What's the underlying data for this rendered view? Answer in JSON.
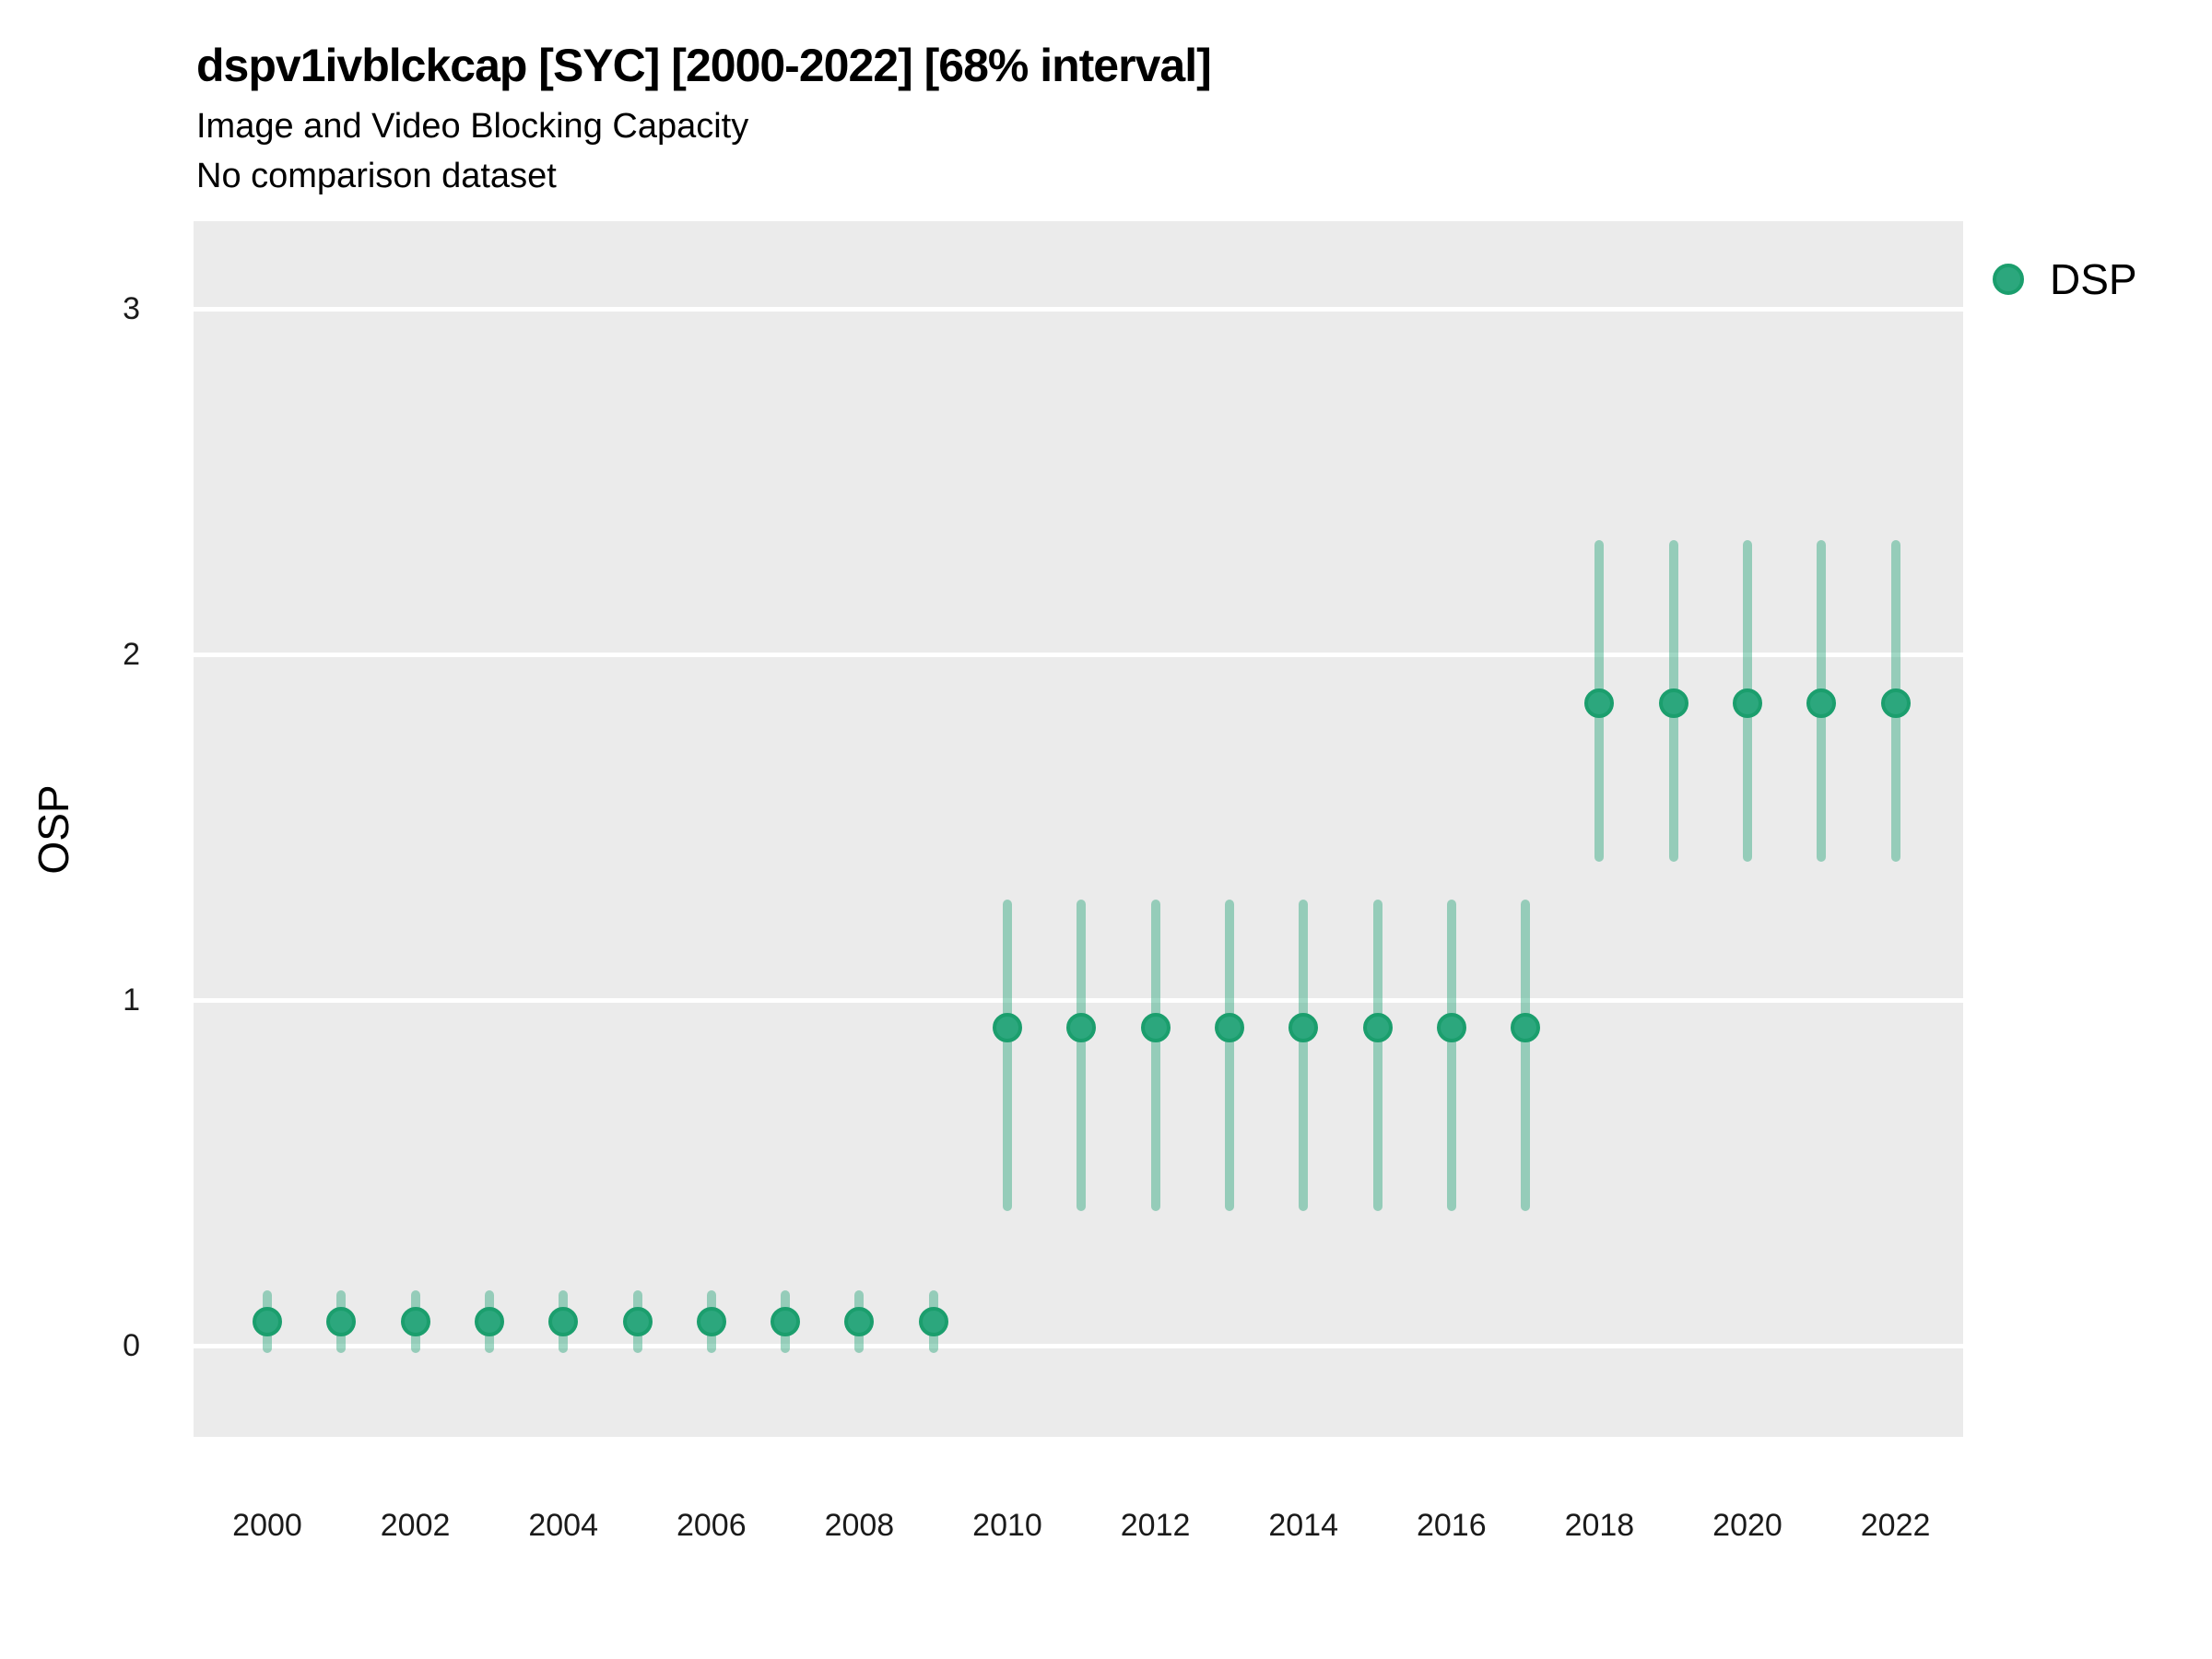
{
  "header": {
    "title": "dspv1ivblckcap [SYC] [2000-2022] [68% interval]",
    "subtitle1": "Image and Video Blocking Capacity",
    "subtitle2": "No comparison dataset"
  },
  "chart_data": {
    "type": "scatter",
    "title": "dspv1ivblckcap [SYC] [2000-2022] [68% interval]",
    "subtitle": "Image and Video Blocking Capacity",
    "note": "No comparison dataset",
    "interval": "68% interval",
    "xlabel": "",
    "ylabel": "OSP",
    "legend_position": "right-top",
    "grid": "horizontal major gridlines only, white on gray panel",
    "x_ticks": [
      2000,
      2002,
      2004,
      2006,
      2008,
      2010,
      2012,
      2014,
      2016,
      2018,
      2020,
      2022
    ],
    "y_ticks": [
      0,
      1,
      2,
      3
    ],
    "xlim": [
      1999.0,
      2022.95
    ],
    "ylim": [
      -0.27,
      3.25
    ],
    "series": [
      {
        "name": "DSP",
        "points": [
          {
            "x": 2000,
            "y": 0.07,
            "lo": -0.02,
            "hi": 0.16
          },
          {
            "x": 2001,
            "y": 0.07,
            "lo": -0.02,
            "hi": 0.16
          },
          {
            "x": 2002,
            "y": 0.07,
            "lo": -0.02,
            "hi": 0.16
          },
          {
            "x": 2003,
            "y": 0.07,
            "lo": -0.02,
            "hi": 0.16
          },
          {
            "x": 2004,
            "y": 0.07,
            "lo": -0.02,
            "hi": 0.16
          },
          {
            "x": 2005,
            "y": 0.07,
            "lo": -0.02,
            "hi": 0.16
          },
          {
            "x": 2006,
            "y": 0.07,
            "lo": -0.02,
            "hi": 0.16
          },
          {
            "x": 2007,
            "y": 0.07,
            "lo": -0.02,
            "hi": 0.16
          },
          {
            "x": 2008,
            "y": 0.07,
            "lo": -0.02,
            "hi": 0.16
          },
          {
            "x": 2009,
            "y": 0.07,
            "lo": -0.02,
            "hi": 0.16
          },
          {
            "x": 2010,
            "y": 0.92,
            "lo": 0.39,
            "hi": 1.29
          },
          {
            "x": 2011,
            "y": 0.92,
            "lo": 0.39,
            "hi": 1.29
          },
          {
            "x": 2012,
            "y": 0.92,
            "lo": 0.39,
            "hi": 1.29
          },
          {
            "x": 2013,
            "y": 0.92,
            "lo": 0.39,
            "hi": 1.29
          },
          {
            "x": 2014,
            "y": 0.92,
            "lo": 0.39,
            "hi": 1.29
          },
          {
            "x": 2015,
            "y": 0.92,
            "lo": 0.39,
            "hi": 1.29
          },
          {
            "x": 2016,
            "y": 0.92,
            "lo": 0.39,
            "hi": 1.29
          },
          {
            "x": 2017,
            "y": 0.92,
            "lo": 0.39,
            "hi": 1.29
          },
          {
            "x": 2018,
            "y": 1.86,
            "lo": 1.4,
            "hi": 2.33
          },
          {
            "x": 2019,
            "y": 1.86,
            "lo": 1.4,
            "hi": 2.33
          },
          {
            "x": 2020,
            "y": 1.86,
            "lo": 1.4,
            "hi": 2.33
          },
          {
            "x": 2021,
            "y": 1.86,
            "lo": 1.4,
            "hi": 2.33
          },
          {
            "x": 2022,
            "y": 1.86,
            "lo": 1.4,
            "hi": 2.33
          }
        ]
      }
    ]
  },
  "legend": {
    "items": [
      {
        "label": "DSP",
        "color": "#2ca77d"
      }
    ]
  },
  "colors": {
    "point_fill": "#2ca77d",
    "point_stroke": "#1b9e6d",
    "interval_bar": "rgba(44, 167, 125, 0.45)",
    "panel_bg": "#ebebeb",
    "gridline": "#ffffff",
    "text": "#000000",
    "tick_text": "#1a1a1a"
  }
}
